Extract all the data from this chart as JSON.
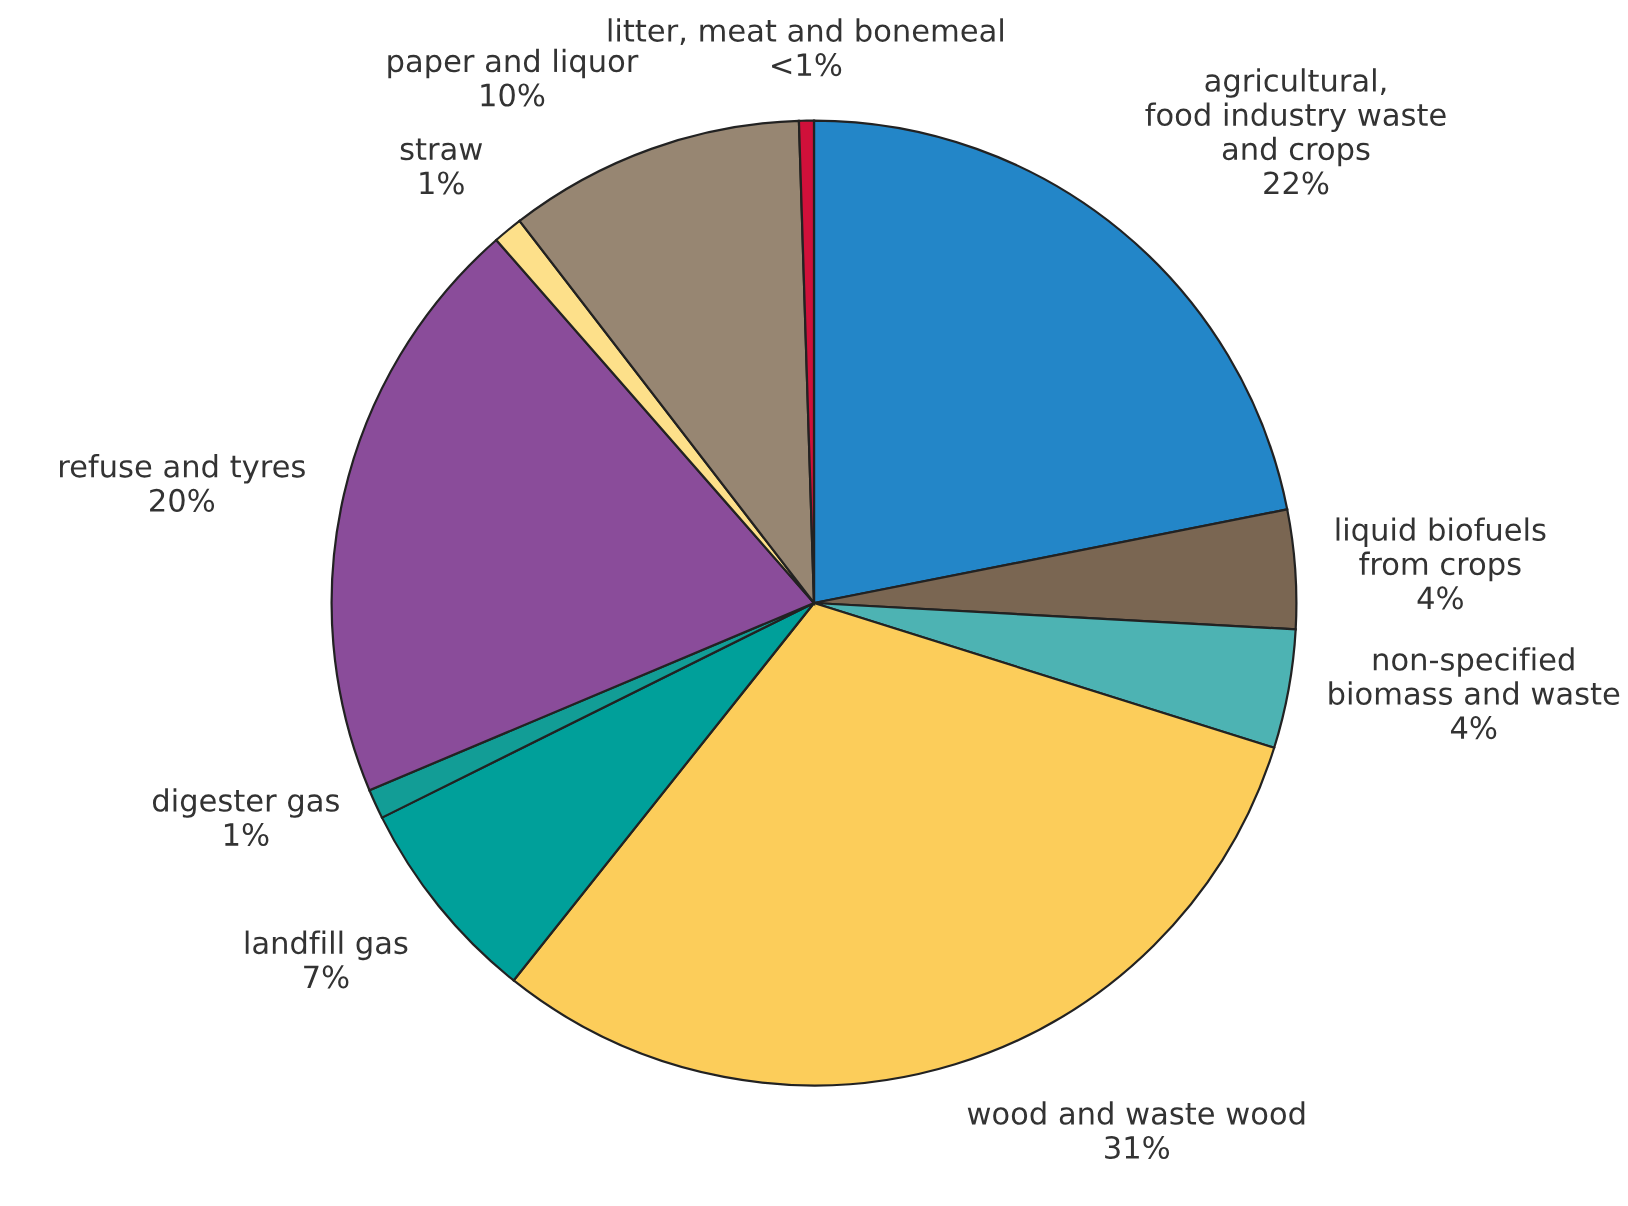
{
  "chart_data": {
    "type": "pie",
    "categories": [
      "agricultural,\nfood industry waste\nand crops",
      "liquid biofuels\nfrom crops",
      "non-specified\nbiomass and waste",
      "wood and waste wood",
      "landfill gas",
      "digester gas",
      "refuse and tyres",
      "straw",
      "paper and liquor",
      "litter, meat and bonemeal"
    ],
    "values": [
      22,
      4,
      4,
      31,
      7,
      1,
      20,
      1,
      10,
      0.5
    ],
    "value_labels": [
      "22%",
      "4%",
      "4%",
      "31%",
      "7%",
      "1%",
      "20%",
      "1%",
      "10%",
      "<1%"
    ],
    "colors": [
      "#2386c8",
      "#7a6652",
      "#4db3b3",
      "#fccd5a",
      "#00a09a",
      "#129d96",
      "#8a4c9a",
      "#fde08a",
      "#978672",
      "#d0103a"
    ],
    "legend": false
  }
}
